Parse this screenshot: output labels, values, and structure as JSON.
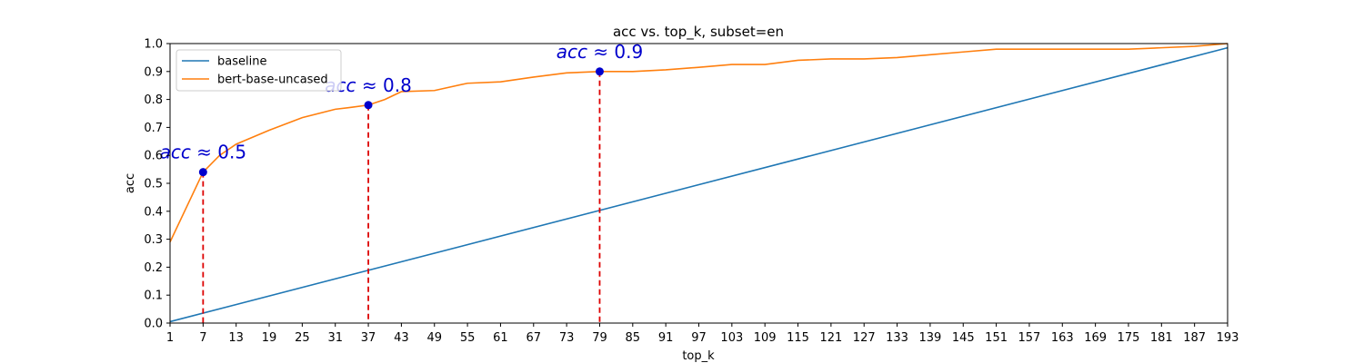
{
  "chart_data": {
    "type": "line",
    "title": "acc vs. top_k, subset=en",
    "xlabel": "top_k",
    "ylabel": "acc",
    "xlim": [
      1,
      193
    ],
    "ylim": [
      0,
      1.0
    ],
    "x_ticks": [
      1,
      7,
      13,
      19,
      25,
      31,
      37,
      43,
      49,
      55,
      61,
      67,
      73,
      79,
      85,
      91,
      97,
      103,
      109,
      115,
      121,
      127,
      133,
      139,
      145,
      151,
      157,
      163,
      169,
      175,
      181,
      187,
      193
    ],
    "y_ticks": [
      0.0,
      0.1,
      0.2,
      0.3,
      0.4,
      0.5,
      0.6,
      0.7,
      0.8,
      0.9,
      1.0
    ],
    "y_tick_labels": [
      "0.0",
      "0.1",
      "0.2",
      "0.3",
      "0.4",
      "0.5",
      "0.6",
      "0.7",
      "0.8",
      "0.9",
      "1.0"
    ],
    "legend_position": "upper-left",
    "grid": false,
    "series": [
      {
        "name": "baseline",
        "color": "#1f77b4",
        "x": [
          1,
          193
        ],
        "y": [
          0.005,
          0.985
        ]
      },
      {
        "name": "bert-base-uncased",
        "color": "#ff7f0e",
        "x": [
          1,
          7,
          10,
          13,
          19,
          25,
          31,
          34,
          37,
          40,
          43,
          49,
          55,
          61,
          67,
          73,
          79,
          85,
          91,
          97,
          103,
          109,
          115,
          121,
          127,
          133,
          139,
          145,
          151,
          157,
          163,
          169,
          175,
          181,
          187,
          193
        ],
        "y": [
          0.29,
          0.54,
          0.6,
          0.64,
          0.69,
          0.735,
          0.765,
          0.772,
          0.78,
          0.8,
          0.828,
          0.832,
          0.858,
          0.863,
          0.88,
          0.895,
          0.9,
          0.9,
          0.906,
          0.915,
          0.925,
          0.925,
          0.94,
          0.945,
          0.945,
          0.95,
          0.96,
          0.97,
          0.98,
          0.98,
          0.98,
          0.98,
          0.98,
          0.985,
          0.99,
          1.0
        ]
      }
    ],
    "markers": [
      {
        "x": 7,
        "y": 0.54,
        "label_prefix": "acc",
        "label_suffix": " ≈ 0.5"
      },
      {
        "x": 37,
        "y": 0.78,
        "label_prefix": "acc",
        "label_suffix": " ≈ 0.8"
      },
      {
        "x": 79,
        "y": 0.9,
        "label_prefix": "acc",
        "label_suffix": " ≈ 0.9"
      }
    ],
    "marker_color": "#0000cc",
    "vline_color": "#dd0000",
    "annotation_color": "#0000cc"
  }
}
